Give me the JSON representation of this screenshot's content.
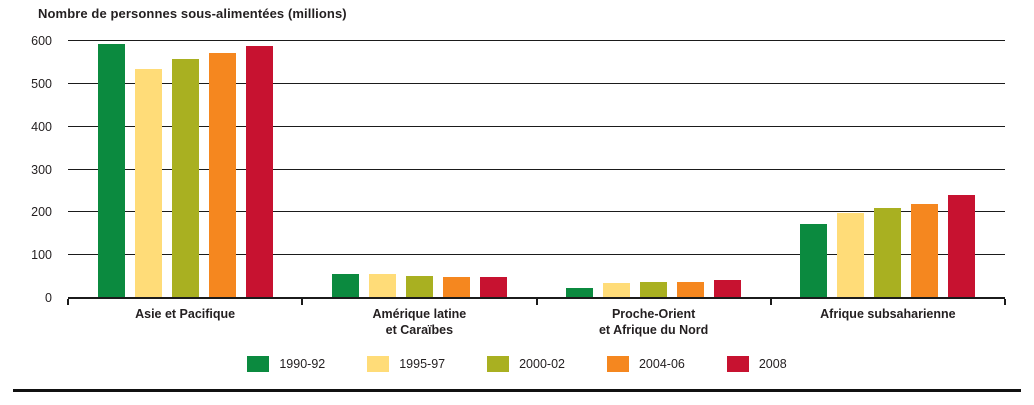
{
  "chart_data": {
    "type": "bar",
    "title": "Nombre de personnes sous-alimentées (millions)",
    "categories": [
      "Asie et Pacifique",
      "Amérique latine\net Caraïbes",
      "Proche-Orient\net Afrique du Nord",
      "Afrique subsaharienne"
    ],
    "series": [
      {
        "name": "1990-92",
        "color": "#0b8a3f",
        "values": [
          590,
          54,
          20,
          170
        ]
      },
      {
        "name": "1995-97",
        "color": "#ffdc78",
        "values": [
          532,
          53,
          32,
          196
        ]
      },
      {
        "name": "2000-02",
        "color": "#a9b021",
        "values": [
          556,
          50,
          34,
          207
        ]
      },
      {
        "name": "2004-06",
        "color": "#f5871f",
        "values": [
          570,
          47,
          36,
          216
        ]
      },
      {
        "name": "2008",
        "color": "#c71230",
        "values": [
          586,
          47,
          40,
          239
        ]
      }
    ],
    "ylim": [
      0,
      600
    ],
    "yticks": [
      0,
      100,
      200,
      300,
      400,
      500,
      600
    ],
    "xlabel": "",
    "ylabel": "Nombre de personnes sous-alimentées (millions)",
    "grid": "horizontal",
    "legend_position": "bottom",
    "axis_color": "#1b1b1b",
    "text_color": "#231f20"
  }
}
